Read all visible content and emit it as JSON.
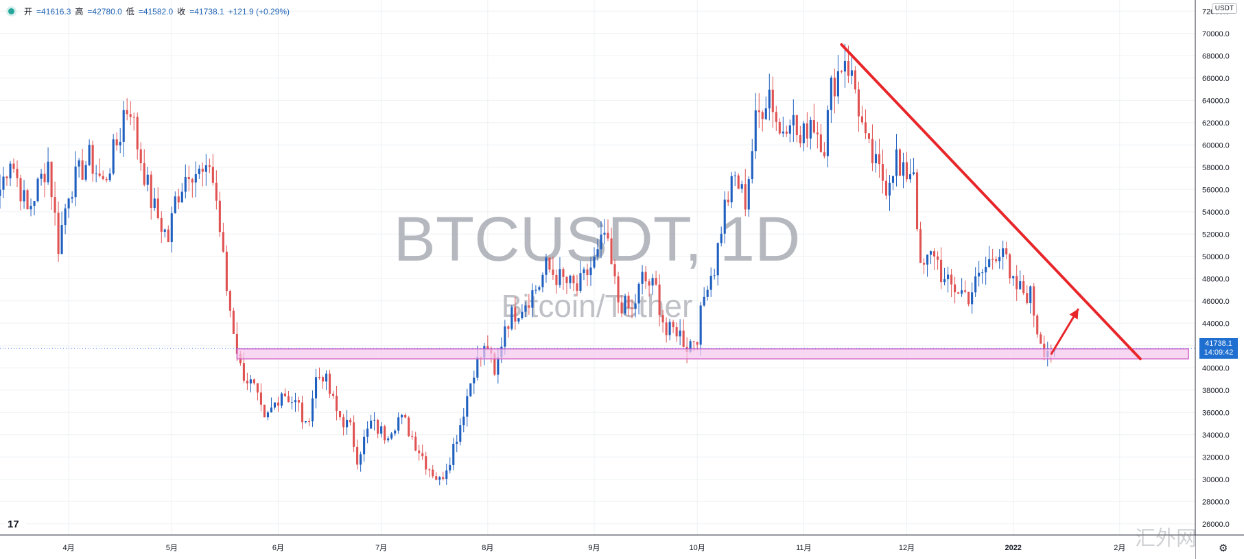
{
  "header": {
    "open_label": "开",
    "open_value": "=41616.3",
    "high_label": "高",
    "high_value": "=42780.0",
    "low_label": "低",
    "low_value": "=41582.0",
    "close_label": "收",
    "close_value": "=41738.1",
    "change": "+121.9 (+0.29%)"
  },
  "currency_badge": "USDT",
  "last_price": "41738.1",
  "countdown": "14:09:42",
  "watermark": {
    "title": "BTCUSDT, 1D",
    "subtitle": "Bitcoin/Tether"
  },
  "site_watermark": "汇外网",
  "colors": {
    "up": "#1e5fbf",
    "down": "#e05252",
    "trendline": "#e8262a",
    "zone_fill": "#f5c6ee",
    "zone_stroke": "#d05bc2",
    "price_line": "#2962ff"
  },
  "icons": {
    "logo": "tradingview-logo-icon",
    "settings": "gear-icon",
    "status": "live-dot-icon"
  },
  "chart_data": {
    "type": "candlestick",
    "symbol": "BTCUSDT",
    "interval": "1D",
    "ylim": [
      25000,
      73000
    ],
    "y_ticks": [
      26000,
      28000,
      30000,
      32000,
      34000,
      36000,
      38000,
      40000,
      42000,
      44000,
      46000,
      48000,
      50000,
      52000,
      54000,
      56000,
      58000,
      60000,
      62000,
      64000,
      66000,
      68000,
      70000,
      72000
    ],
    "x_ticks": [
      "4月",
      "5月",
      "6月",
      "7月",
      "8月",
      "9月",
      "10月",
      "11月",
      "12月",
      "2022",
      "2月"
    ],
    "x_tick_days": [
      20,
      50,
      81,
      111,
      142,
      173,
      203,
      234,
      264,
      295,
      326
    ],
    "x_range_days": [
      0,
      348
    ],
    "anchors": [
      [
        0,
        56000
      ],
      [
        3,
        59000
      ],
      [
        8,
        54000
      ],
      [
        14,
        58500
      ],
      [
        17,
        51000
      ],
      [
        20,
        56000
      ],
      [
        26,
        58800
      ],
      [
        30,
        56500
      ],
      [
        35,
        61000
      ],
      [
        36,
        63000
      ],
      [
        38,
        63500
      ],
      [
        40,
        60000
      ],
      [
        44,
        55000
      ],
      [
        46,
        53500
      ],
      [
        49,
        51500
      ],
      [
        51,
        55000
      ],
      [
        55,
        58000
      ],
      [
        60,
        57000
      ],
      [
        61,
        58500
      ],
      [
        63,
        55000
      ],
      [
        66,
        47000
      ],
      [
        70,
        40000
      ],
      [
        74,
        38000
      ],
      [
        77,
        35000
      ],
      [
        82,
        38000
      ],
      [
        87,
        36500
      ],
      [
        89,
        34500
      ],
      [
        92,
        39000
      ],
      [
        94,
        39500
      ],
      [
        98,
        36000
      ],
      [
        102,
        34500
      ],
      [
        104,
        32000
      ],
      [
        108,
        35000
      ],
      [
        112,
        34000
      ],
      [
        116,
        35500
      ],
      [
        118,
        35000
      ],
      [
        124,
        31500
      ],
      [
        128,
        29800
      ],
      [
        131,
        32000
      ],
      [
        134,
        35000
      ],
      [
        138,
        40000
      ],
      [
        142,
        42000
      ],
      [
        144,
        39000
      ],
      [
        147,
        44000
      ],
      [
        153,
        46000
      ],
      [
        157,
        47500
      ],
      [
        159,
        49000
      ],
      [
        163,
        48000
      ],
      [
        168,
        47000
      ],
      [
        174,
        50000
      ],
      [
        176,
        52000
      ],
      [
        180,
        46000
      ],
      [
        184,
        45000
      ],
      [
        187,
        48000
      ],
      [
        191,
        47000
      ],
      [
        194,
        43000
      ],
      [
        197,
        43500
      ],
      [
        200,
        42000
      ],
      [
        203,
        43000
      ],
      [
        206,
        48000
      ],
      [
        208,
        49000
      ],
      [
        211,
        54500
      ],
      [
        214,
        57000
      ],
      [
        217,
        55000
      ],
      [
        220,
        62000
      ],
      [
        224,
        65000
      ],
      [
        227,
        61000
      ],
      [
        230,
        63000
      ],
      [
        233,
        60000
      ],
      [
        236,
        62500
      ],
      [
        240,
        60000
      ],
      [
        242,
        65000
      ],
      [
        246,
        68000
      ],
      [
        249,
        65000
      ],
      [
        252,
        60000
      ],
      [
        255,
        58000
      ],
      [
        258,
        56500
      ],
      [
        261,
        59000
      ],
      [
        262,
        57000
      ],
      [
        266,
        58000
      ],
      [
        268,
        48500
      ],
      [
        272,
        50500
      ],
      [
        275,
        47500
      ],
      [
        279,
        47000
      ],
      [
        282,
        46500
      ],
      [
        285,
        48000
      ],
      [
        290,
        50500
      ],
      [
        292,
        51000
      ],
      [
        294,
        47500
      ],
      [
        297,
        47000
      ],
      [
        300,
        46500
      ],
      [
        302,
        43500
      ],
      [
        304,
        41800
      ],
      [
        307,
        41738
      ]
    ],
    "annotations": {
      "trendline": {
        "from": [
          245,
          69000
        ],
        "to": [
          332,
          40800
        ]
      },
      "arrow": {
        "from": [
          306,
          41200
        ],
        "to": [
          314,
          45300
        ]
      },
      "support_zone": {
        "from_day": 69,
        "to_day": 346,
        "y_low": 40800,
        "y_high": 41700
      }
    }
  }
}
